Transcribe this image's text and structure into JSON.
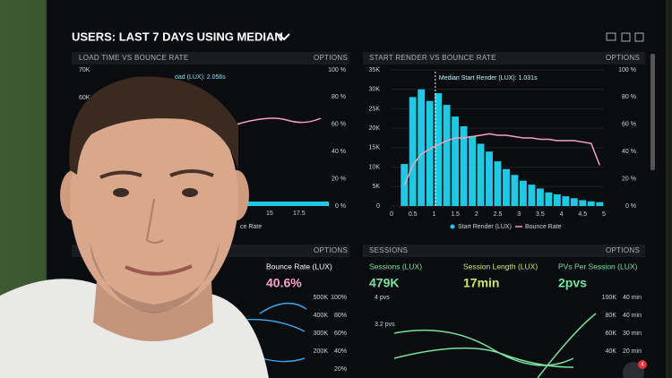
{
  "dashboard": {
    "title": "USERS: LAST 7 DAYS USING MEDIAN"
  },
  "panels": [
    {
      "title": "LOAD TIME VS BOUNCE RATE",
      "options": "OPTIONS",
      "annotation": "oad (LUX): 2.056s",
      "y_labels": [
        "70K",
        "60K"
      ],
      "y2_labels": [
        "100 %",
        "80 %",
        "60 %",
        "40 %",
        "20 %",
        "0 %"
      ],
      "x_labels": [
        "15",
        "17.5"
      ],
      "legend": "ce Rate"
    },
    {
      "title": "START RENDER VS BOUNCE RATE",
      "options": "OPTIONS",
      "chart_data": {
        "type": "histogram",
        "annotation": "Median Start Render (LUX): 1.031s",
        "median": 1.031,
        "bins": [
          0.2,
          0.4,
          0.6,
          0.8,
          1.0,
          1.2,
          1.4,
          1.6,
          1.8,
          2.0,
          2.2,
          2.4,
          2.6,
          2.8,
          3.0,
          3.2,
          3.4,
          3.6,
          3.8,
          4.0,
          4.2,
          4.4,
          4.6,
          4.8,
          5.0
        ],
        "series": [
          {
            "name": "Start Render (LUX)",
            "color": "#1fc8e3",
            "values": [
              10800,
              28000,
              30000,
              27000,
              29000,
              26000,
              23000,
              20500,
              18000,
              16000,
              14000,
              11500,
              9500,
              8000,
              6500,
              5500,
              4500,
              3500,
              3000,
              2500,
              2000,
              1500,
              1200,
              1000
            ]
          },
          {
            "name": "Bounce Rate",
            "color": "#f2a2c0",
            "axis": "y2",
            "values": [
              15,
              30,
              38,
              42,
              45,
              48,
              50,
              50,
              51,
              52,
              53,
              52,
              52,
              51,
              50,
              50,
              49,
              49,
              48,
              48,
              48,
              47,
              46,
              30
            ]
          }
        ],
        "xlim": [
          0,
          5
        ],
        "xticks": [
          0,
          0.5,
          1,
          1.5,
          2,
          2.5,
          3,
          3.5,
          4,
          4.5,
          5
        ],
        "ylim": [
          0,
          35000
        ],
        "yticks": [
          {
            "value": 0,
            "label": "0"
          },
          {
            "value": 5000,
            "label": "5K"
          },
          {
            "value": 10000,
            "label": "10K"
          },
          {
            "value": 15000,
            "label": "15K"
          },
          {
            "value": 20000,
            "label": "20K"
          },
          {
            "value": 25000,
            "label": "25K"
          },
          {
            "value": 30000,
            "label": "30K"
          },
          {
            "value": 35000,
            "label": "35K"
          }
        ],
        "y2lim": [
          0,
          100
        ],
        "y2ticks": [
          {
            "value": 0,
            "label": "0 %"
          },
          {
            "value": 20,
            "label": "20 %"
          },
          {
            "value": 40,
            "label": "40 %"
          },
          {
            "value": 60,
            "label": "60 %"
          },
          {
            "value": 80,
            "label": "80 %"
          },
          {
            "value": 100,
            "label": "100 %"
          }
        ]
      }
    },
    {
      "options": "OPTIONS",
      "metric": "Bounce Rate (LUX)",
      "value": "40.6%",
      "y_labels": [
        "500K",
        "400K",
        "300K",
        "200K"
      ],
      "y2_labels": [
        "100%",
        "80%",
        "60%",
        "40%",
        "20%"
      ]
    },
    {
      "title": "SESSIONS",
      "options": "OPTIONS",
      "metrics": [
        {
          "label": "Sessions (LUX)",
          "value": "479K"
        },
        {
          "label": "Session Length (LUX)",
          "value": "17min"
        },
        {
          "label": "PVs Per Session (LUX)",
          "value": "2pvs"
        }
      ],
      "y_labels": [
        "4 pvs",
        "3.2 pvs"
      ],
      "y2_labels": [
        "100K",
        "80K",
        "60K",
        "40K"
      ],
      "y3_labels": [
        "40 min",
        "40 min",
        "30 min",
        "20 min"
      ]
    }
  ],
  "notification_count": "4"
}
